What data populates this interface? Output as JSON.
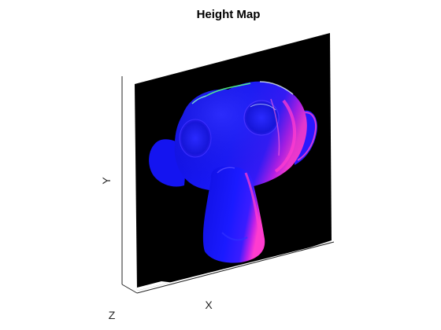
{
  "chart_data": {
    "type": "surface",
    "title": "Height Map",
    "xlabel": "X",
    "ylabel": "Y",
    "zlabel": "Z",
    "colors": {
      "background": "#000000",
      "surface_primary": "#1a1aff",
      "surface_highlight": "#ff33cc",
      "edge_highlight": "#33ff66",
      "axis_line": "#262626"
    }
  }
}
